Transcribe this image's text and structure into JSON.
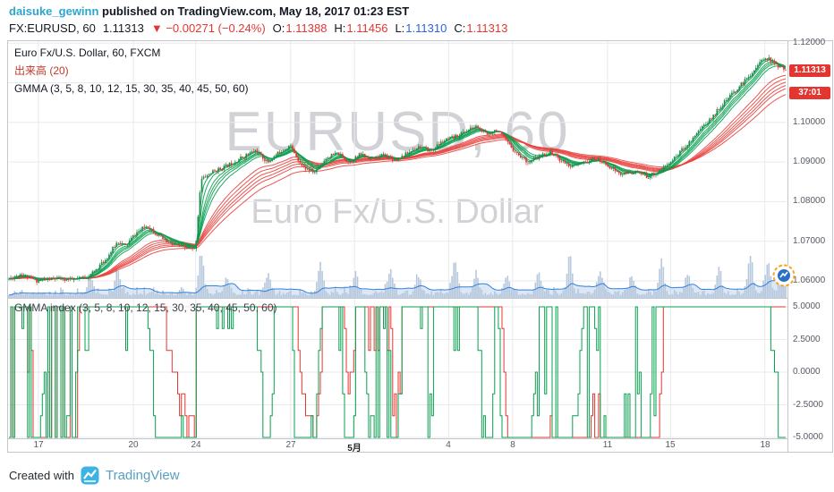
{
  "header": {
    "author": "daisuke_gewinn",
    "author_color": "#2da5cf",
    "published_text": "published on TradingView.com, May 18, 2017 01:23 EST"
  },
  "quote": {
    "symbol": "FX:EURUSD, 60",
    "last": "1.11313",
    "arrow": "▼",
    "change": "−0.00271 (−0.24%)",
    "change_color": "#e43631",
    "fields": [
      {
        "label": "O:",
        "value": "1.11388",
        "color": "#e43631"
      },
      {
        "label": "H:",
        "value": "1.11456",
        "color": "#e43631"
      },
      {
        "label": "L:",
        "value": "1.11310",
        "color": "#2e62d9"
      },
      {
        "label": "C:",
        "value": "1.11313",
        "color": "#e43631"
      }
    ]
  },
  "legend": {
    "main": "Euro Fx/U.S. Dollar, 60, FXCM",
    "volume": "出来高 (20)",
    "volume_color": "#c0392b",
    "gmma": "GMMA (3, 5, 8, 10, 12, 15, 30, 35, 40, 45, 50, 60)",
    "gmma_index": "GMMA index (3, 5, 8, 10, 12, 15, 30, 35, 40, 45, 50, 60)"
  },
  "watermark": {
    "line1": "EURUSD, 60",
    "line2": "Euro Fx/U.S. Dollar"
  },
  "price_axis": {
    "labels": [
      {
        "text": "1.12000",
        "value": 1.12
      },
      {
        "text": "1.10000",
        "value": 1.1
      },
      {
        "text": "1.09000",
        "value": 1.09
      },
      {
        "text": "1.08000",
        "value": 1.08
      },
      {
        "text": "1.07000",
        "value": 1.07
      },
      {
        "text": "1.06000",
        "value": 1.06
      }
    ],
    "last_badge": "1.11313",
    "countdown_badge": "37:01",
    "badge_color": "#e43631"
  },
  "indicator_axis": {
    "labels": [
      {
        "text": "5.0000",
        "value": 5
      },
      {
        "text": "2.5000",
        "value": 2.5
      },
      {
        "text": "0.0000",
        "value": 0
      },
      {
        "text": "-2.5000",
        "value": -2.5
      },
      {
        "text": "-5.0000",
        "value": -5
      }
    ]
  },
  "time_axis": {
    "labels": [
      {
        "text": "17",
        "x": 0.039
      },
      {
        "text": "20",
        "x": 0.161
      },
      {
        "text": "24",
        "x": 0.241
      },
      {
        "text": "27",
        "x": 0.363
      },
      {
        "text": "5月",
        "x": 0.445,
        "strong": true
      },
      {
        "text": "4",
        "x": 0.566
      },
      {
        "text": "8",
        "x": 0.648
      },
      {
        "text": "11",
        "x": 0.77
      },
      {
        "text": "15",
        "x": 0.851
      },
      {
        "text": "18",
        "x": 0.972
      }
    ]
  },
  "footer": {
    "created_with": "Created with",
    "brand": "TradingView",
    "brand_color": "#58a0c4",
    "logo_color": "#3bb3e4"
  },
  "chart_data": {
    "type": "candlestick",
    "symbol": "EURUSD",
    "interval": "60",
    "exchange": "FXCM",
    "bars": 420,
    "last_close": 1.11313,
    "ohlc_last_bar": {
      "open": 1.11388,
      "high": 1.11456,
      "low": 1.1131,
      "close": 1.11313
    },
    "price_range": {
      "top": 1.1205,
      "bottom": 1.0557
    },
    "price_gridlines": [
      1.06,
      1.07,
      1.08,
      1.09,
      1.1,
      1.11,
      1.12
    ],
    "price_path_anchors": [
      [
        0.0,
        1.0605
      ],
      [
        0.015,
        1.0618
      ],
      [
        0.035,
        1.06
      ],
      [
        0.06,
        1.0606
      ],
      [
        0.085,
        1.0602
      ],
      [
        0.105,
        1.0615
      ],
      [
        0.125,
        1.0655
      ],
      [
        0.14,
        1.07
      ],
      [
        0.15,
        1.0688
      ],
      [
        0.163,
        1.072
      ],
      [
        0.178,
        1.074
      ],
      [
        0.192,
        1.0715
      ],
      [
        0.205,
        1.0695
      ],
      [
        0.222,
        1.0685
      ],
      [
        0.24,
        1.0678
      ],
      [
        0.247,
        1.0855
      ],
      [
        0.262,
        1.0875
      ],
      [
        0.28,
        1.089
      ],
      [
        0.3,
        1.0912
      ],
      [
        0.318,
        1.093
      ],
      [
        0.333,
        1.0898
      ],
      [
        0.348,
        1.0925
      ],
      [
        0.362,
        1.0942
      ],
      [
        0.378,
        1.0888
      ],
      [
        0.393,
        1.0873
      ],
      [
        0.408,
        1.091
      ],
      [
        0.423,
        1.0922
      ],
      [
        0.438,
        1.09
      ],
      [
        0.453,
        1.092
      ],
      [
        0.468,
        1.0908
      ],
      [
        0.483,
        1.0918
      ],
      [
        0.498,
        1.0905
      ],
      [
        0.513,
        1.0922
      ],
      [
        0.528,
        1.094
      ],
      [
        0.543,
        1.0928
      ],
      [
        0.558,
        1.0952
      ],
      [
        0.573,
        1.0962
      ],
      [
        0.588,
        1.0978
      ],
      [
        0.602,
        1.099
      ],
      [
        0.615,
        1.0968
      ],
      [
        0.628,
        1.0983
      ],
      [
        0.642,
        1.0948
      ],
      [
        0.656,
        1.0918
      ],
      [
        0.67,
        1.0898
      ],
      [
        0.684,
        1.0915
      ],
      [
        0.698,
        1.0925
      ],
      [
        0.712,
        1.0902
      ],
      [
        0.726,
        1.0888
      ],
      [
        0.74,
        1.0898
      ],
      [
        0.755,
        1.0908
      ],
      [
        0.77,
        1.0893
      ],
      [
        0.788,
        1.0868
      ],
      [
        0.805,
        1.0875
      ],
      [
        0.822,
        1.0863
      ],
      [
        0.838,
        1.0878
      ],
      [
        0.852,
        1.09
      ],
      [
        0.865,
        1.0928
      ],
      [
        0.878,
        1.0955
      ],
      [
        0.89,
        1.0985
      ],
      [
        0.902,
        1.1005
      ],
      [
        0.915,
        1.1038
      ],
      [
        0.928,
        1.1065
      ],
      [
        0.94,
        1.109
      ],
      [
        0.952,
        1.1115
      ],
      [
        0.963,
        1.1142
      ],
      [
        0.974,
        1.1166
      ],
      [
        0.985,
        1.115
      ],
      [
        1.0,
        1.11313
      ]
    ],
    "gmma_short_periods": [
      3,
      5,
      8,
      10,
      12,
      15
    ],
    "gmma_long_periods": [
      30,
      35,
      40,
      45,
      50,
      60
    ],
    "volume_ma_period": 20,
    "volume_spikes": [
      [
        0.105,
        0.45
      ],
      [
        0.14,
        0.55
      ],
      [
        0.247,
        0.95
      ],
      [
        0.28,
        0.4
      ],
      [
        0.333,
        0.5
      ],
      [
        0.4,
        0.75
      ],
      [
        0.445,
        0.5
      ],
      [
        0.49,
        0.6
      ],
      [
        0.525,
        0.45
      ],
      [
        0.573,
        0.8
      ],
      [
        0.6,
        0.5
      ],
      [
        0.64,
        0.45
      ],
      [
        0.68,
        0.55
      ],
      [
        0.72,
        0.85
      ],
      [
        0.76,
        0.5
      ],
      [
        0.8,
        0.45
      ],
      [
        0.838,
        0.8
      ],
      [
        0.872,
        0.5
      ],
      [
        0.912,
        0.55
      ],
      [
        0.952,
        0.9
      ],
      [
        0.975,
        0.75
      ],
      [
        0.992,
        0.65
      ]
    ],
    "indicator": {
      "name": "GMMA index",
      "range": [
        -5,
        5
      ],
      "gridlines": [
        5,
        2.5,
        0,
        -2.5,
        -5
      ]
    },
    "colors": {
      "candle_up": "#1f8b4d",
      "candle_down": "#e43631",
      "gmma_short": "#07a04f",
      "gmma_long": "#e8423e",
      "volume_bar": "#b6c8dc",
      "volume_ma": "#2f80e0",
      "volume_area": "rgba(120,160,220,0.25)",
      "grid": "#e9eaed",
      "index_green": "#07a04f",
      "index_red": "#e43631",
      "marker_ring": "#f7a325",
      "marker_fill": "#2d6fc4"
    }
  }
}
